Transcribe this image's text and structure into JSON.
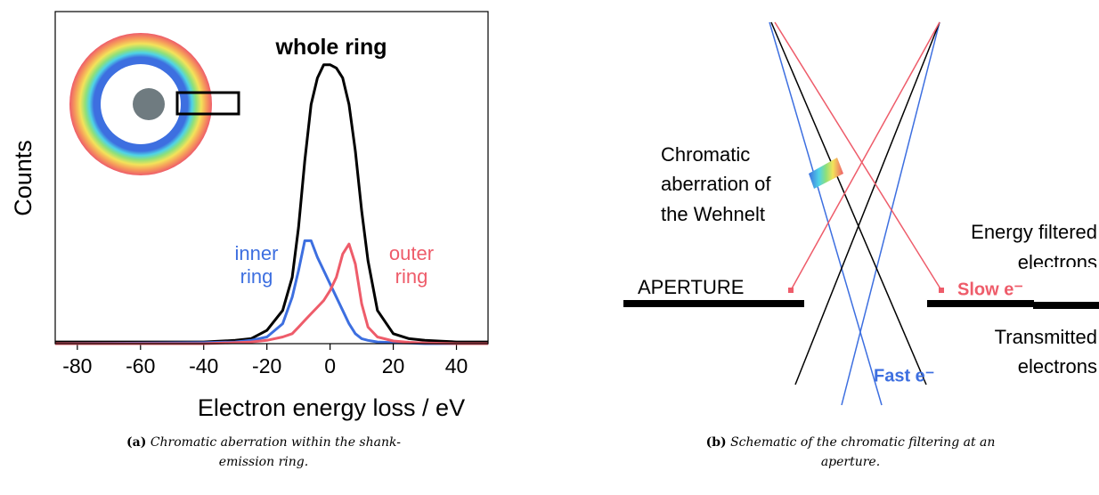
{
  "chart_data": {
    "type": "line",
    "xlabel": "Electron energy loss / eV",
    "ylabel": "Counts",
    "xlim": [
      -87,
      50
    ],
    "ylim": [
      0,
      100
    ],
    "xticks": [
      -80,
      -60,
      -40,
      -20,
      0,
      20,
      40
    ],
    "x": [
      -87,
      -40,
      -30,
      -25,
      -20,
      -15,
      -12,
      -10,
      -8,
      -6,
      -4,
      -2,
      0,
      2,
      4,
      6,
      8,
      10,
      12,
      15,
      20,
      25,
      30,
      40,
      50
    ],
    "series": [
      {
        "name": "whole ring",
        "color": "#000000",
        "values": [
          0.5,
          0.5,
          1,
          1.5,
          4,
          10,
          20,
          35,
          55,
          72,
          80,
          84,
          84,
          83,
          80,
          72,
          58,
          40,
          25,
          10,
          3,
          1.5,
          1,
          0.5,
          0.5
        ]
      },
      {
        "name": "inner ring",
        "color": "#3d6fe0",
        "values": [
          0,
          0.3,
          0.5,
          1,
          2,
          6,
          14,
          22,
          31,
          31,
          26,
          22,
          18,
          14,
          10,
          6,
          3,
          1.5,
          1,
          0.5,
          0.3,
          0.2,
          0,
          0,
          0
        ]
      },
      {
        "name": "outer ring",
        "color": "#ee5c6a",
        "values": [
          0,
          0,
          0.3,
          0.5,
          1,
          2,
          3,
          5,
          7,
          9,
          11,
          13,
          16,
          20,
          27,
          30,
          24,
          12,
          5,
          2,
          0.8,
          0.4,
          0.2,
          0,
          0
        ]
      }
    ]
  },
  "schematic": {
    "chromatic": [
      "Chromatic",
      "aberration of",
      "the Wehnelt"
    ],
    "filtered": [
      "Energy filtered",
      "electrons"
    ],
    "aperture": "APERTURE",
    "slow": "Slow e⁻",
    "fast": "Fast e⁻",
    "transmitted": [
      "Transmitted",
      "electrons"
    ]
  },
  "captions": [
    {
      "label": "(a)",
      "text": "Chromatic aberration within the shank-emission ring."
    },
    {
      "label": "(b)",
      "text": "Schematic of the chromatic filtering at an aperture."
    }
  ]
}
